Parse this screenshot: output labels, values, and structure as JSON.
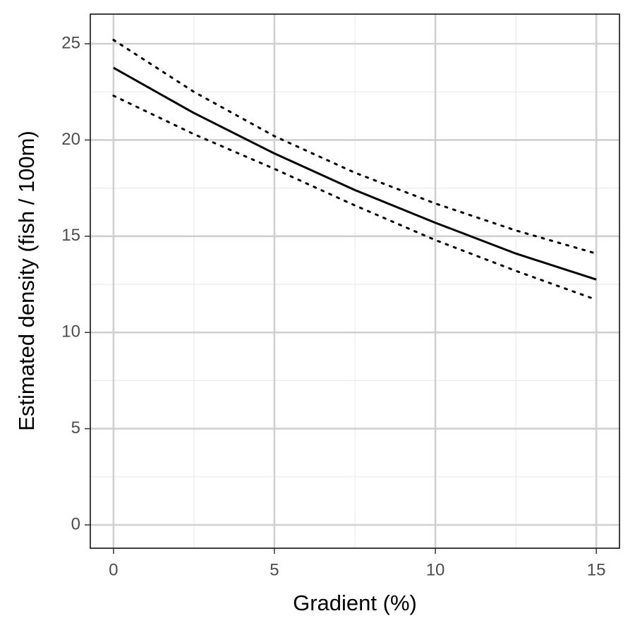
{
  "chart_data": {
    "type": "line",
    "x_label": "Gradient (%)",
    "y_label": "Estimated density (fish / 100m)",
    "x": [
      0,
      2.5,
      5,
      7.5,
      10,
      12.5,
      15
    ],
    "series": [
      {
        "color": "#000000",
        "dash": "solid",
        "values": [
          23.75,
          21.4,
          19.3,
          17.4,
          15.7,
          14.1,
          12.75
        ]
      },
      {
        "color": "#000000",
        "dash": "dotted",
        "values": [
          25.2,
          22.5,
          20.2,
          18.3,
          16.7,
          15.3,
          14.1
        ]
      },
      {
        "color": "#000000",
        "dash": "dotted",
        "values": [
          22.3,
          20.3,
          18.5,
          16.6,
          14.8,
          13.2,
          11.7
        ]
      }
    ],
    "xlim": [
      -0.72,
      15.72
    ],
    "ylim": [
      -1.21,
      26.54
    ],
    "xticks": [
      0,
      5,
      10,
      15
    ],
    "yticks": [
      0,
      5,
      10,
      15,
      20,
      25
    ],
    "x_minor_ticks": [
      2.5,
      7.5,
      12.5
    ],
    "y_minor_ticks": [
      2.5,
      7.5,
      12.5,
      17.5,
      22.5
    ],
    "grid": true
  }
}
